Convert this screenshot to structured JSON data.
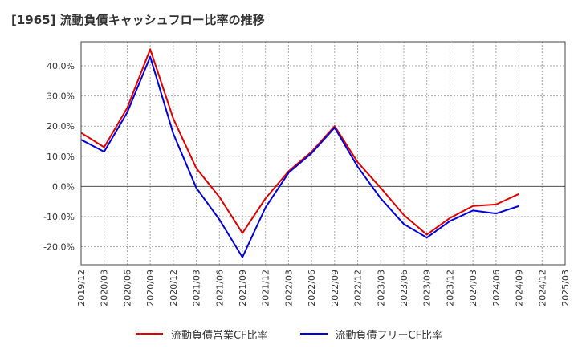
{
  "title": "[1965]  流動負債キャッシュフロー比率の推移",
  "chart_data": {
    "type": "line",
    "x": [
      "2019/12",
      "2020/03",
      "2020/06",
      "2020/09",
      "2020/12",
      "2021/03",
      "2021/06",
      "2021/09",
      "2021/12",
      "2022/03",
      "2022/06",
      "2022/09",
      "2022/12",
      "2023/03",
      "2023/06",
      "2023/09",
      "2023/12",
      "2024/03",
      "2024/06",
      "2024/09",
      "2024/12",
      "2025/03"
    ],
    "yticks": [
      "40.0%",
      "30.0%",
      "20.0%",
      "10.0%",
      "0.0%",
      "-10.0%",
      "-20.0%"
    ],
    "ytick_values": [
      40,
      30,
      20,
      10,
      0,
      -10,
      -20
    ],
    "ylim": [
      -26,
      48
    ],
    "grid": true,
    "legend_position": "bottom",
    "series": [
      {
        "name": "流動負債営業CF比率",
        "color": "#e00000",
        "values": [
          17.8,
          13.0,
          26.0,
          45.5,
          22.5,
          6.0,
          -3.5,
          -15.5,
          -4.0,
          5.0,
          11.5,
          20.0,
          8.0,
          -0.5,
          -9.5,
          -16.0,
          -10.5,
          -6.5,
          -6.0,
          -2.5,
          null,
          null
        ]
      },
      {
        "name": "流動負債フリーCF比率",
        "color": "#0000dd",
        "values": [
          15.5,
          11.5,
          24.5,
          43.0,
          17.5,
          -0.5,
          -11.0,
          -23.5,
          -7.0,
          4.5,
          11.0,
          19.5,
          6.5,
          -4.0,
          -12.5,
          -17.0,
          -11.5,
          -8.0,
          -9.0,
          -6.5,
          null,
          null
        ]
      }
    ]
  }
}
